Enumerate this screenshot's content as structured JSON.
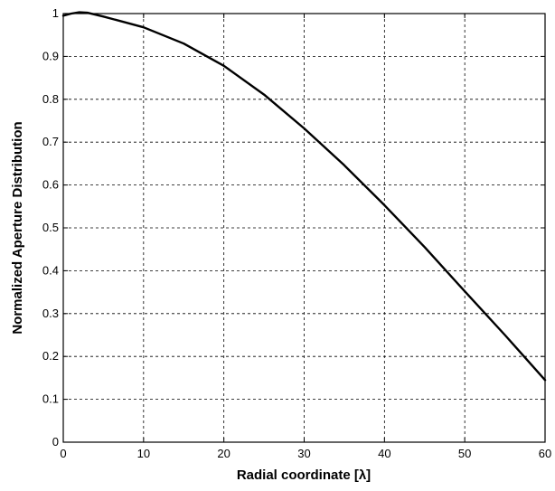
{
  "chart_data": {
    "type": "line",
    "title": "",
    "xlabel": "Radial coordinate [λ]",
    "ylabel": "Normalized Aperture Distribution",
    "xlim": [
      0,
      60
    ],
    "ylim": [
      0,
      1
    ],
    "xticks": [
      0,
      10,
      20,
      30,
      40,
      50,
      60
    ],
    "xtick_labels": [
      "0",
      "10",
      "20",
      "30",
      "40",
      "50",
      "60"
    ],
    "yticks": [
      0,
      0.1,
      0.2,
      0.3,
      0.4,
      0.5,
      0.6,
      0.7,
      0.8,
      0.9,
      1
    ],
    "ytick_labels": [
      "0",
      "0.1",
      "0.2",
      "0.3",
      "0.4",
      "0.5",
      "0.6",
      "0.7",
      "0.8",
      "0.9",
      "1"
    ],
    "grid": true,
    "legend": false,
    "series": [
      {
        "color": "#000000",
        "x": [
          0,
          1,
          2,
          3,
          5,
          10,
          15,
          20,
          25,
          30,
          35,
          40,
          45,
          50,
          55,
          60
        ],
        "y": [
          0.995,
          1.0,
          1.003,
          1.002,
          0.993,
          0.968,
          0.93,
          0.878,
          0.811,
          0.732,
          0.646,
          0.553,
          0.455,
          0.352,
          0.25,
          0.145
        ]
      }
    ]
  }
}
